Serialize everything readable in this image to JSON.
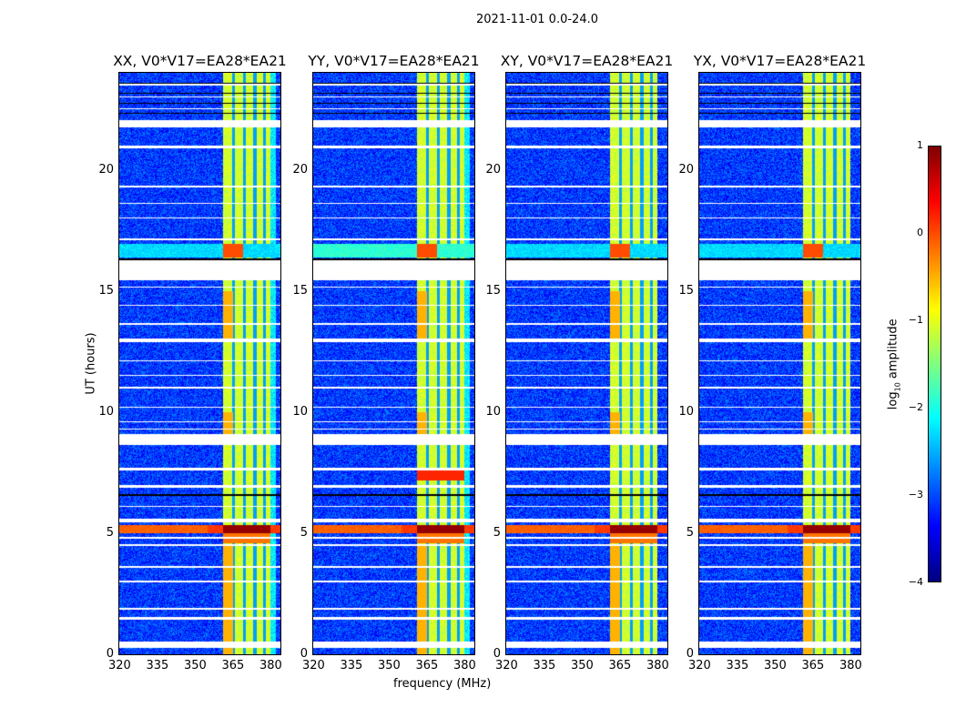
{
  "chart_data": {
    "type": "heatmap",
    "title": "2021-11-01 0.0-24.0",
    "xlabel": "frequency (MHz)",
    "ylabel": "UT (hours)",
    "xlim": [
      320,
      384
    ],
    "ylim": [
      0,
      24
    ],
    "xticks": [
      320,
      335,
      350,
      365,
      380
    ],
    "yticks": [
      0,
      5,
      10,
      15,
      20
    ],
    "panels": [
      {
        "title": "XX, V0*V17=EA28*EA21",
        "pol": "XX"
      },
      {
        "title": "YY, V0*V17=EA28*EA21",
        "pol": "YY"
      },
      {
        "title": "XY, V0*V17=EA28*EA21",
        "pol": "XY"
      },
      {
        "title": "YX, V0*V17=EA28*EA21",
        "pol": "YX"
      }
    ],
    "colorbar": {
      "label_main": "log",
      "label_sub": "10",
      "label_tail": " amplitude",
      "range": [
        -4,
        1
      ],
      "ticks": [
        "1",
        "0",
        "−1",
        "−2",
        "−3",
        "−4"
      ],
      "colormap": "jet"
    },
    "rfi_band_mhz": [
      361,
      380
    ],
    "strong_event_hours": [
      5.0,
      5.35
    ],
    "flagged_gaps_hours": [
      [
        0.3,
        0.55
      ],
      [
        1.45,
        1.55
      ],
      [
        1.85,
        1.92
      ],
      [
        3.0,
        3.05
      ],
      [
        3.6,
        3.68
      ],
      [
        4.5,
        4.55
      ],
      [
        4.8,
        4.85
      ],
      [
        5.45,
        5.6
      ],
      [
        6.1,
        6.15
      ],
      [
        6.9,
        7.0
      ],
      [
        7.6,
        7.7
      ],
      [
        8.65,
        9.1
      ],
      [
        9.3,
        9.35
      ],
      [
        9.6,
        9.65
      ],
      [
        10.2,
        10.25
      ],
      [
        11.0,
        11.05
      ],
      [
        11.5,
        11.55
      ],
      [
        12.1,
        12.15
      ],
      [
        12.9,
        13.05
      ],
      [
        13.6,
        13.7
      ],
      [
        14.4,
        14.45
      ],
      [
        15.15,
        15.2
      ],
      [
        15.45,
        16.3
      ],
      [
        17.1,
        17.2
      ],
      [
        18.0,
        18.05
      ],
      [
        18.6,
        18.65
      ],
      [
        19.3,
        19.35
      ],
      [
        20.9,
        21.0
      ],
      [
        21.75,
        22.05
      ],
      [
        22.5,
        22.55
      ],
      [
        23.0,
        23.05
      ],
      [
        23.5,
        23.55
      ]
    ]
  }
}
